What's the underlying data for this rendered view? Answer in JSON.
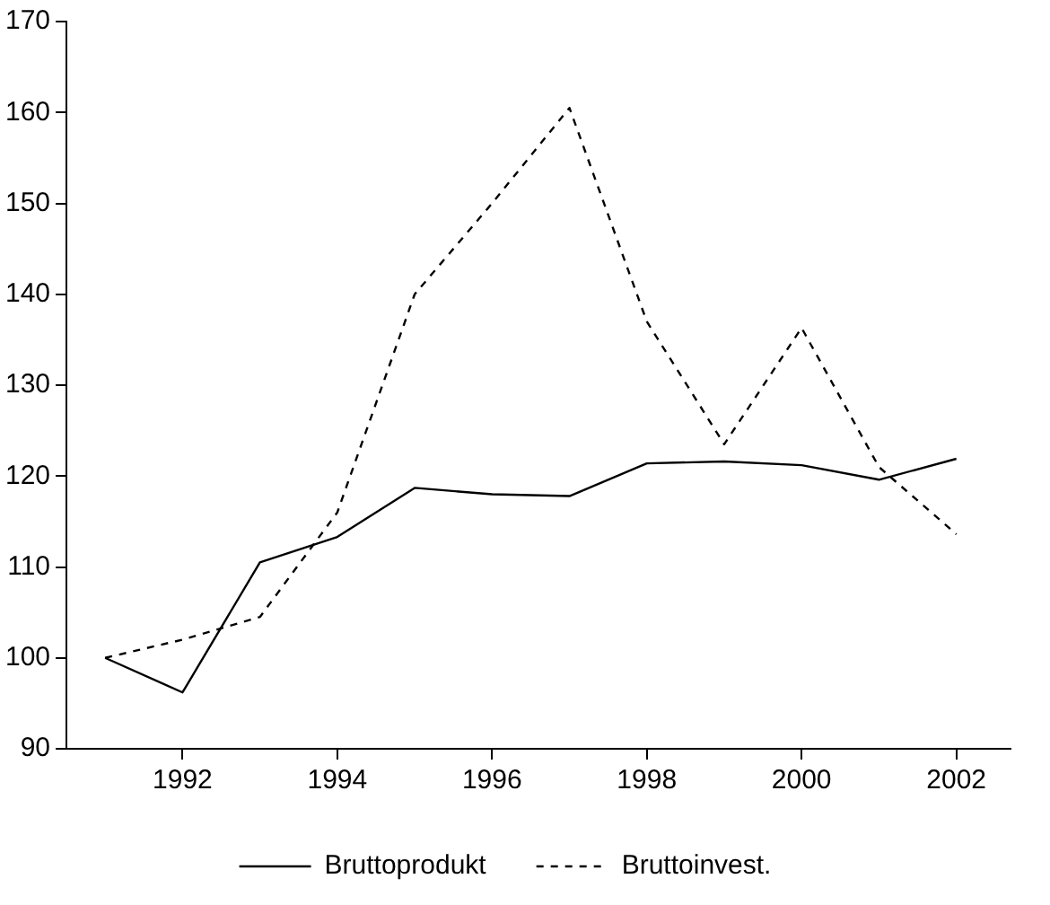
{
  "chart_data": {
    "type": "line",
    "x": [
      1991,
      1992,
      1993,
      1994,
      1995,
      1996,
      1997,
      1998,
      1999,
      2000,
      2001,
      2002
    ],
    "series": [
      {
        "name": "Bruttoprodukt",
        "color": "#000000",
        "line_style": "solid",
        "values": [
          100,
          96.2,
          110.5,
          113.3,
          118.7,
          118,
          117.8,
          121.4,
          121.6,
          121.2,
          119.6,
          121.9
        ]
      },
      {
        "name": "Bruttoinvest.",
        "color": "#000000",
        "line_style": "dashed",
        "values": [
          100,
          102,
          104.5,
          116,
          140,
          150,
          160.5,
          137,
          123.5,
          136.3,
          121,
          113.6
        ]
      }
    ],
    "xlim": [
      1990.5,
      2002.7
    ],
    "xticks": [
      1992,
      1994,
      1996,
      1998,
      2000,
      2002
    ],
    "ylim": [
      90,
      170
    ],
    "yticks": [
      90,
      100,
      110,
      120,
      130,
      140,
      150,
      160,
      170
    ],
    "grid": false,
    "legend": "bottom",
    "marker": "none"
  }
}
